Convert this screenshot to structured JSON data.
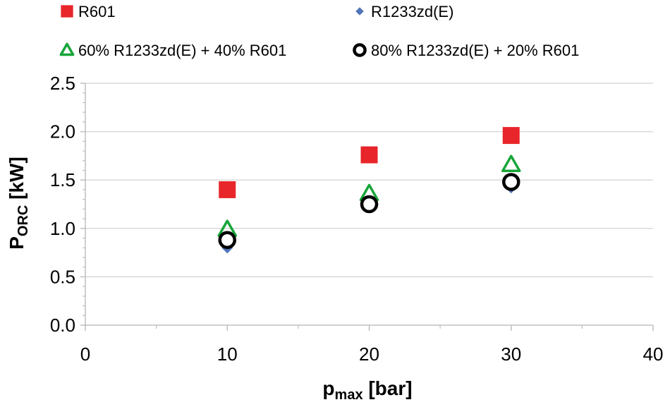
{
  "chart_data": {
    "type": "scatter",
    "title": "",
    "xlabel": {
      "main": "p",
      "sub": "max",
      "unit": " [bar]"
    },
    "ylabel": {
      "main": "P",
      "sub": "ORC",
      "unit": " [kW]"
    },
    "xlim": [
      0,
      40
    ],
    "ylim": [
      0,
      2.5
    ],
    "x_ticks": [
      0,
      10,
      20,
      30,
      40
    ],
    "y_ticks": [
      0.0,
      0.5,
      1.0,
      1.5,
      2.0,
      2.5
    ],
    "x_tick_labels": [
      "0",
      "10",
      "20",
      "30",
      "40"
    ],
    "y_tick_labels": [
      "0.0",
      "0.5",
      "1.0",
      "1.5",
      "2.0",
      "2.5"
    ],
    "grid": "horizontal",
    "legend_position": "top",
    "series": [
      {
        "name": "R601",
        "marker": "square",
        "color": "#e8252a",
        "x": [
          10,
          20,
          30
        ],
        "y": [
          1.4,
          1.76,
          1.96
        ]
      },
      {
        "name": "R1233zd(E)",
        "marker": "diamond",
        "color": "#4f74b8",
        "x": [
          10,
          20,
          30
        ],
        "y": [
          0.8,
          1.24,
          1.42
        ]
      },
      {
        "name": "60% R1233zd(E) + 40% R601",
        "marker": "triangle",
        "color": "#17a538",
        "x": [
          10,
          20,
          30
        ],
        "y": [
          0.99,
          1.36,
          1.66
        ]
      },
      {
        "name": "80% R1233zd(E) + 20% R601",
        "marker": "circle",
        "color": "#000000",
        "x": [
          10,
          20,
          30
        ],
        "y": [
          0.88,
          1.25,
          1.48
        ]
      }
    ]
  }
}
